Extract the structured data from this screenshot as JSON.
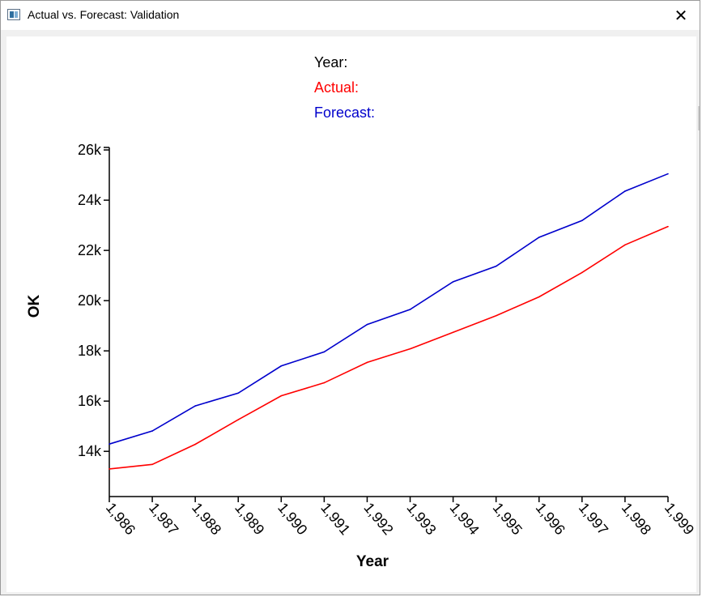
{
  "window": {
    "title": "Actual vs. Forecast: Validation",
    "close_icon": "close-icon",
    "app_icon": "window-app-icon"
  },
  "legend": {
    "year_label": "Year:",
    "actual_label": "Actual:",
    "forecast_label": "Forecast:"
  },
  "colors": {
    "actual": "#ff0000",
    "forecast": "#0000cc",
    "axis": "#000000"
  },
  "chart_data": {
    "type": "line",
    "xlabel": "Year",
    "ylabel": "OK",
    "x": [
      1986,
      1987,
      1988,
      1989,
      1990,
      1991,
      1992,
      1993,
      1994,
      1995,
      1996,
      1997,
      1998,
      1999
    ],
    "x_tick_labels": [
      "1,986",
      "1,987",
      "1,988",
      "1,989",
      "1,990",
      "1,991",
      "1,992",
      "1,993",
      "1,994",
      "1,995",
      "1,996",
      "1,997",
      "1,998",
      "1,999"
    ],
    "y_ticks": [
      14000,
      16000,
      18000,
      20000,
      22000,
      24000,
      26000
    ],
    "y_tick_labels": [
      "14k",
      "16k",
      "18k",
      "20k",
      "22k",
      "24k",
      "26k"
    ],
    "ylim": [
      12200,
      26100
    ],
    "xlim": [
      1986,
      1999
    ],
    "series": [
      {
        "name": "Actual",
        "color": "#ff0000",
        "values": [
          13300,
          13480,
          14280,
          15260,
          16210,
          16730,
          17540,
          18080,
          18740,
          19400,
          20150,
          21120,
          22220,
          22950
        ]
      },
      {
        "name": "Forecast",
        "color": "#0000cc",
        "values": [
          14290,
          14810,
          15810,
          16320,
          17400,
          17960,
          19050,
          19650,
          20750,
          21370,
          22520,
          23190,
          24360,
          25050
        ]
      }
    ],
    "grid": false,
    "legend_position": "top-center"
  }
}
